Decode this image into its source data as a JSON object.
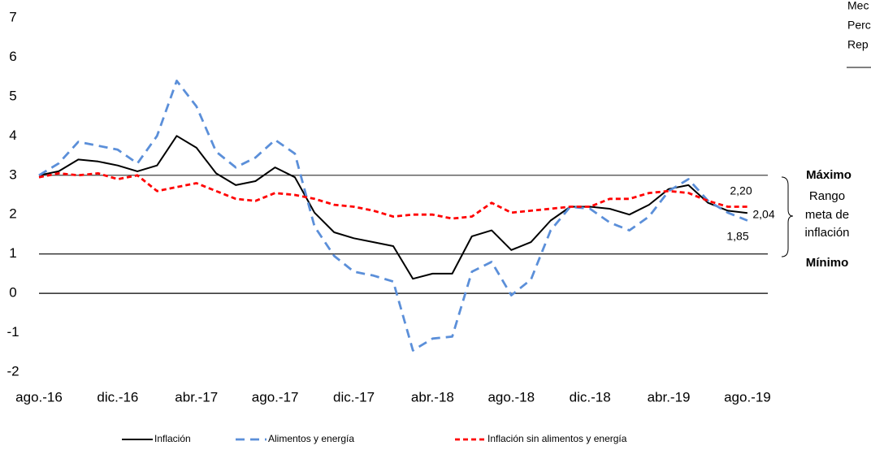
{
  "chart_data": {
    "type": "line",
    "categories": [
      "ago.-16",
      null,
      null,
      null,
      "dic.-16",
      null,
      null,
      null,
      "abr.-17",
      null,
      null,
      null,
      "ago.-17",
      null,
      null,
      null,
      "dic.-17",
      null,
      null,
      null,
      "abr.-18",
      null,
      null,
      null,
      "ago.-18",
      null,
      null,
      null,
      "dic.-18",
      null,
      null,
      null,
      "abr.-19",
      null,
      null,
      null,
      "ago.-19"
    ],
    "series": [
      {
        "name": "Inflación",
        "color": "#000000",
        "dash": "none",
        "values": [
          3.0,
          3.1,
          3.4,
          3.35,
          3.25,
          3.1,
          3.25,
          4.0,
          3.7,
          3.05,
          2.75,
          2.85,
          3.2,
          2.95,
          2.05,
          1.55,
          1.4,
          1.3,
          1.2,
          0.37,
          0.5,
          0.5,
          1.45,
          1.6,
          1.1,
          1.3,
          1.85,
          2.2,
          2.2,
          2.15,
          2.0,
          2.25,
          2.65,
          2.75,
          2.3,
          2.1,
          2.04
        ]
      },
      {
        "name": "Alimentos y energía",
        "color": "#5b8fd9",
        "dash": "11,7",
        "values": [
          3.0,
          3.3,
          3.85,
          3.75,
          3.65,
          3.3,
          4.0,
          5.4,
          4.75,
          3.6,
          3.2,
          3.45,
          3.9,
          3.55,
          1.7,
          0.95,
          0.55,
          0.45,
          0.3,
          -1.45,
          -1.15,
          -1.1,
          0.55,
          0.8,
          -0.05,
          0.35,
          1.6,
          2.2,
          2.15,
          1.8,
          1.6,
          1.95,
          2.6,
          2.9,
          2.35,
          2.05,
          1.85
        ]
      },
      {
        "name": "Inflación sin alimentos y energía",
        "color": "#ff0000",
        "dash": "6,4",
        "values": [
          2.95,
          3.05,
          3.0,
          3.05,
          2.9,
          3.0,
          2.6,
          2.7,
          2.8,
          2.6,
          2.4,
          2.35,
          2.55,
          2.5,
          2.4,
          2.25,
          2.2,
          2.1,
          1.95,
          2.0,
          2.0,
          1.9,
          1.95,
          2.3,
          2.05,
          2.1,
          2.15,
          2.2,
          2.2,
          2.4,
          2.4,
          2.55,
          2.6,
          2.55,
          2.35,
          2.2,
          2.2
        ]
      }
    ],
    "ylim": [
      -2,
      7
    ],
    "yticks": [
      -2,
      -1,
      0,
      1,
      2,
      3,
      4,
      5,
      6,
      7
    ],
    "reference_lines": [
      0,
      1,
      3
    ],
    "annotations": [
      "2,20",
      "2,04",
      "1,85",
      "Máximo",
      "Rango",
      "meta de",
      "inflación",
      "Mínimo"
    ],
    "notes": [
      "Mec",
      "Perc",
      "Rep"
    ],
    "legend": "bottom"
  }
}
